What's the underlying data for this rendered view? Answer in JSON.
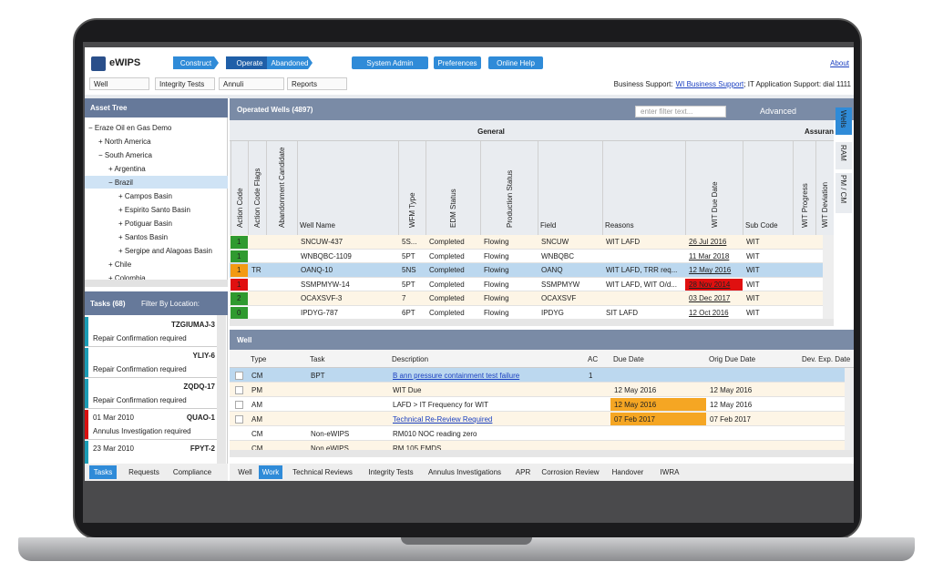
{
  "header": {
    "app_name": "eWIPS",
    "workflow": [
      "Construct",
      "Operate",
      "Abandoned"
    ],
    "buttons": [
      "System Admin",
      "Preferences",
      "Online Help"
    ],
    "about": "About",
    "dropdowns": [
      "Well",
      "Integrity Tests",
      "Annuli",
      "Reports"
    ],
    "support_label": "Business Support:",
    "support_link": "WI Business Support",
    "support_rest": "; IT Application Support: dial 1111"
  },
  "asset_tree": {
    "title": "Asset Tree",
    "nodes": [
      {
        "label": "Eraze Oil en Gas Demo",
        "children": [
          {
            "label": "North America"
          },
          {
            "label": "South America",
            "children": [
              {
                "label": "Argentina"
              },
              {
                "label": "Brazil",
                "selected": true,
                "children": [
                  {
                    "label": "Campos Basin"
                  },
                  {
                    "label": "Espirito Santo Basin"
                  },
                  {
                    "label": "Potiguar Basin"
                  },
                  {
                    "label": "Santos Basin"
                  },
                  {
                    "label": "Sergipe and Alagoas Basin"
                  }
                ]
              },
              {
                "label": "Chile"
              },
              {
                "label": "Colombia"
              }
            ]
          }
        ]
      }
    ]
  },
  "tasks": {
    "title": "Tasks (68)",
    "filter": "Filter By Location:",
    "items": [
      {
        "id": "TZGIUMAJ-3",
        "text": "Repair Confirmation required",
        "color": "#1a9cb5"
      },
      {
        "id": "YLIY-6",
        "text": "Repair Confirmation required",
        "color": "#1a9cb5"
      },
      {
        "id": "ZQDQ-17",
        "text": "Repair Confirmation required",
        "color": "#1a9cb5"
      },
      {
        "date": "01 Mar 2010",
        "id": "QUAO-1",
        "text": "Annulus Investigation required",
        "color": "#d81010"
      },
      {
        "date": "23 Mar 2010",
        "id": "FPYT-2",
        "color": "#1a9cb5"
      }
    ],
    "tabs": [
      "Tasks",
      "Requests",
      "Compliance"
    ]
  },
  "wells": {
    "title": "Operated Wells (4897)",
    "filter_placeholder": "enter filter text...",
    "advanced": "Advanced",
    "groups": [
      "General",
      "Assuran"
    ],
    "columns": [
      "Action Code",
      "Action Code Flags",
      "Abandonment Candidate",
      "Well Name",
      "WFM Type",
      "EDM Status",
      "Production Status",
      "Field",
      "Reasons",
      "WIT Due Date",
      "Sub Code",
      "WIT Progress",
      "WIT Deviation"
    ],
    "rows": [
      {
        "action_color": "#2f9a2f",
        "cells": [
          "1",
          null,
          null,
          "SNCUW-437",
          "5S...",
          "Completed",
          "Flowing",
          "SNCUW",
          "WIT LAFD",
          "26 Jul 2016",
          "WIT",
          null,
          null
        ]
      },
      {
        "action_color": "#2f9a2f",
        "cells": [
          "1",
          null,
          null,
          "WNBQBC-1109",
          "5PT",
          "Completed",
          "Flowing",
          "WNBQBC",
          null,
          "11 Mar 2018",
          "WIT",
          null,
          null
        ]
      },
      {
        "action_color": "#f39a12",
        "selected": true,
        "cells": [
          "1",
          "TR",
          null,
          "OANQ-10",
          "5NS",
          "Completed",
          "Flowing",
          "OANQ",
          "WIT LAFD, TRR req...",
          "12 May 2016",
          "WIT",
          null,
          null
        ]
      },
      {
        "action_color": "#e01010",
        "due_color": "#e01010",
        "cells": [
          "1",
          null,
          null,
          "SSMPMYW-14",
          "5PT",
          "Completed",
          "Flowing",
          "SSMPMYW",
          "WIT LAFD, WIT O/d...",
          "28 Nov 2014",
          "WIT",
          null,
          null
        ]
      },
      {
        "action_color": "#2f9a2f",
        "cells": [
          "2",
          null,
          null,
          "OCAXSVF-3",
          "7",
          "Completed",
          "Flowing",
          "OCAXSVF",
          null,
          "03 Dec 2017",
          "WIT",
          null,
          null
        ]
      },
      {
        "action_color": "#2f9a2f",
        "cells": [
          "0",
          null,
          null,
          "IPDYG-787",
          "6PT",
          "Completed",
          "Flowing",
          "IPDYG",
          "SIT LAFD",
          "12 Oct 2016",
          "WIT",
          null,
          null
        ]
      }
    ],
    "side_tabs": [
      "Wells",
      "RAM",
      "PM / CM"
    ]
  },
  "well": {
    "title": "Well",
    "columns": [
      "Type",
      "Task",
      "Description",
      "AC",
      "Due Date",
      "Orig Due Date",
      "Dev. Exp. Date"
    ],
    "rows": [
      {
        "selected": true,
        "link": true,
        "cells": [
          "CM",
          "BPT",
          "B ann pressure containment test failure",
          "1",
          null,
          null,
          null
        ]
      },
      {
        "cells": [
          "PM",
          null,
          "WIT Due",
          null,
          "12 May 2016",
          "12 May 2016",
          null
        ]
      },
      {
        "due_color": "#f5a623",
        "cells": [
          "AM",
          null,
          "LAFD > IT Frequency for WIT",
          null,
          "12 May 2016",
          "12 May 2016",
          null
        ]
      },
      {
        "due_color": "#f5a623",
        "link": true,
        "cells": [
          "AM",
          null,
          "Technical Re-Review Required",
          null,
          "07 Feb 2017",
          "07 Feb 2017",
          null
        ]
      },
      {
        "cells": [
          "CM",
          "Non-eWIPS",
          "RM010 NOC reading zero",
          null,
          null,
          null,
          null
        ]
      },
      {
        "cells": [
          "CM",
          "Non eWIPS",
          "RM 105 EMDS",
          null,
          null,
          null,
          null
        ]
      }
    ],
    "tabs": [
      "Well",
      "Work",
      "Technical Reviews",
      "Integrity Tests",
      "Annulus Investigations",
      "APR",
      "Corrosion Review",
      "Handover",
      "IWRA"
    ]
  }
}
